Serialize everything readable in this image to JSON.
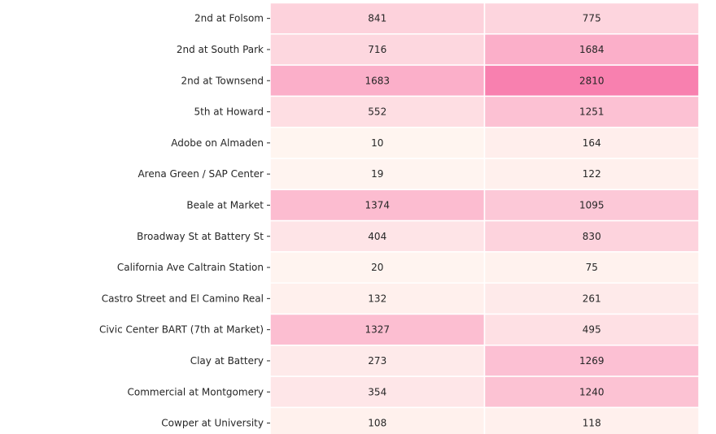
{
  "chart_data": {
    "type": "heatmap",
    "rows": [
      "2nd at Folsom",
      "2nd at South Park",
      "2nd at Townsend",
      "5th at Howard",
      "Adobe on Almaden",
      "Arena Green / SAP Center",
      "Beale at Market",
      "Broadway St at Battery St",
      "California Ave Caltrain Station",
      "Castro Street and El Camino Real",
      "Civic Center BART (7th at Market)",
      "Clay at Battery",
      "Commercial at Montgomery",
      "Cowper at University"
    ],
    "values": [
      [
        841,
        775
      ],
      [
        716,
        1684
      ],
      [
        1683,
        2810
      ],
      [
        552,
        1251
      ],
      [
        10,
        164
      ],
      [
        19,
        122
      ],
      [
        1374,
        1095
      ],
      [
        404,
        830
      ],
      [
        20,
        75
      ],
      [
        132,
        261
      ],
      [
        1327,
        495
      ],
      [
        273,
        1269
      ],
      [
        354,
        1240
      ],
      [
        108,
        118
      ]
    ],
    "color_low": "#fff5f0",
    "color_high": "#f768a1",
    "value_range": [
      0,
      3400
    ],
    "grid": false
  }
}
